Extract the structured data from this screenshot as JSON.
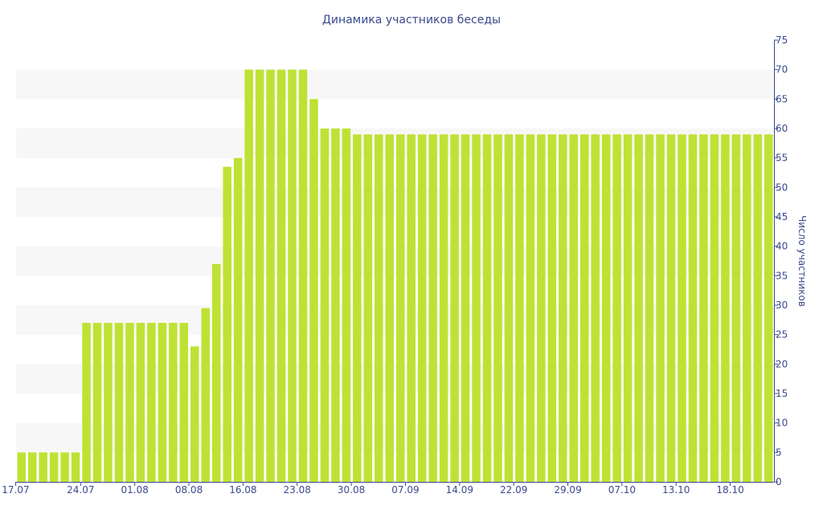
{
  "chart_data": {
    "type": "bar",
    "title": "Динамика участников беседы",
    "xlabel": "",
    "ylabel": "Число участников",
    "ylim": [
      0,
      75
    ],
    "y_ticks": [
      0,
      5,
      10,
      15,
      20,
      25,
      30,
      35,
      40,
      45,
      50,
      55,
      60,
      65,
      70,
      75
    ],
    "y_axis_position": "right",
    "grid": "alternating horizontal bands",
    "x_tick_labels": [
      "17.07",
      "24.07",
      "01.08",
      "08.08",
      "16.08",
      "23.08",
      "30.08",
      "07.09",
      "14.09",
      "22.09",
      "29.09",
      "07.10",
      "13.10",
      "18.10"
    ],
    "x_tick_bar_index": [
      0,
      6,
      11,
      16,
      21,
      26,
      31,
      36,
      41,
      46,
      51,
      56,
      61,
      66
    ],
    "values": [
      5,
      5,
      5,
      5,
      5,
      5,
      27,
      27,
      27,
      27,
      27,
      27,
      27,
      27,
      27,
      27,
      23,
      29.5,
      37,
      53.5,
      55,
      70,
      70,
      70,
      70,
      70,
      70,
      65,
      60,
      60,
      60,
      59,
      59,
      59,
      59,
      59,
      59,
      59,
      59,
      59,
      59,
      59,
      59,
      59,
      59,
      59,
      59,
      59,
      59,
      59,
      59,
      59,
      59,
      59,
      59,
      59,
      59,
      59,
      59,
      59,
      59,
      59,
      59,
      59,
      59,
      59,
      59,
      59,
      59,
      59
    ],
    "colors": {
      "bar": "#bee234",
      "band": "#f7f7f7",
      "axis": "#3a4a8c",
      "text": "#3a4a8c"
    }
  }
}
